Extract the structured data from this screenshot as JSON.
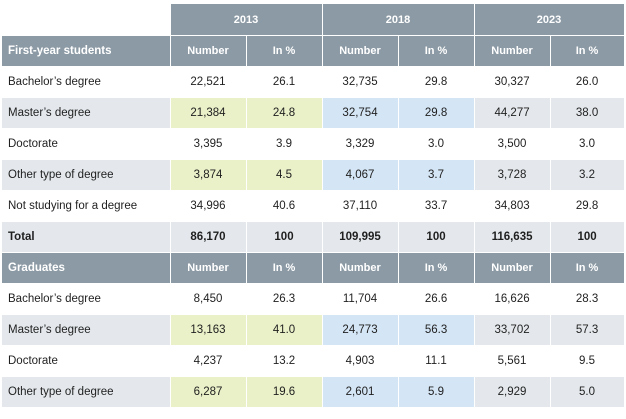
{
  "years": [
    "2013",
    "2018",
    "2023"
  ],
  "sections": [
    {
      "title": "First-year students",
      "col_headers": [
        "Number",
        "In %",
        "Number",
        "In %",
        "Number",
        "In %"
      ],
      "rows": [
        {
          "label": "Bachelor’s degree",
          "cells": [
            "22,521",
            "26.1",
            "32,735",
            "29.8",
            "30,327",
            "26.0"
          ]
        },
        {
          "label": "Master’s degree",
          "cells": [
            "21,384",
            "24.8",
            "32,754",
            "29.8",
            "44,277",
            "38.0"
          ]
        },
        {
          "label": "Doctorate",
          "cells": [
            "3,395",
            "3.9",
            "3,329",
            "3.0",
            "3,500",
            "3.0"
          ]
        },
        {
          "label": "Other type of degree",
          "cells": [
            "3,874",
            "4.5",
            "4,067",
            "3.7",
            "3,728",
            "3.2"
          ]
        },
        {
          "label": "Not studying for a degree",
          "cells": [
            "34,996",
            "40.6",
            "37,110",
            "33.7",
            "34,803",
            "29.8"
          ]
        },
        {
          "label": "Total",
          "cells": [
            "86,170",
            "100",
            "109,995",
            "100",
            "116,635",
            "100"
          ]
        }
      ]
    },
    {
      "title": "Graduates",
      "col_headers": [
        "Number",
        "In %",
        "Number",
        "In %",
        "Number",
        "In %"
      ],
      "rows": [
        {
          "label": "Bachelor’s degree",
          "cells": [
            "8,450",
            "26.3",
            "11,704",
            "26.6",
            "16,626",
            "28.3"
          ]
        },
        {
          "label": "Master’s degree",
          "cells": [
            "13,163",
            "41.0",
            "24,773",
            "56.3",
            "33,702",
            "57.3"
          ]
        },
        {
          "label": "Doctorate",
          "cells": [
            "4,237",
            "13.2",
            "4,903",
            "11.1",
            "5,561",
            "9.5"
          ]
        },
        {
          "label": "Other type of degree",
          "cells": [
            "6,287",
            "19.6",
            "2,601",
            "5.9",
            "2,929",
            "5.0"
          ]
        }
      ]
    }
  ],
  "colors": {
    "header": "#8c9aa5",
    "stripe": "#e4e8ec",
    "highlight_2013": "#eaf0c8",
    "highlight_2018": "#d4e5f5"
  }
}
